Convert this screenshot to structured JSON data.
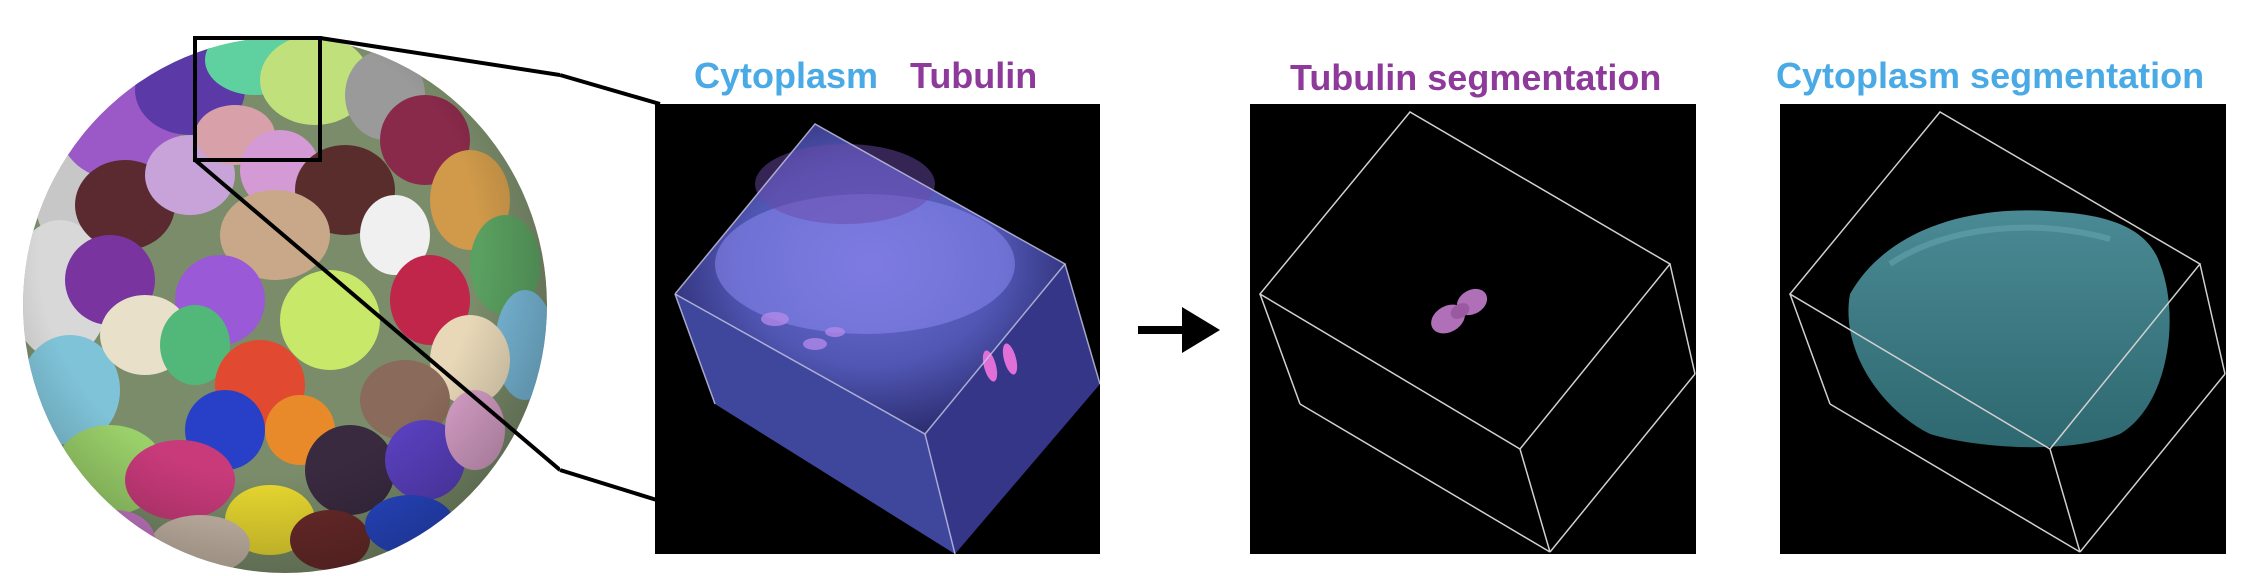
{
  "labels": {
    "cytoplasm": "Cytoplasm",
    "tubulin": "Tubulin",
    "tubulin_segmentation": "Tubulin segmentation",
    "cytoplasm_segmentation": "Cytoplasm segmentation"
  },
  "colors": {
    "cytoplasm": "#4aaae6",
    "tubulin": "#8e3a9a",
    "panel_bg": "#000000",
    "arrow": "#000000",
    "segmented_tubulin": "#b070b8",
    "segmented_cytoplasm": "#3e7f88"
  }
}
